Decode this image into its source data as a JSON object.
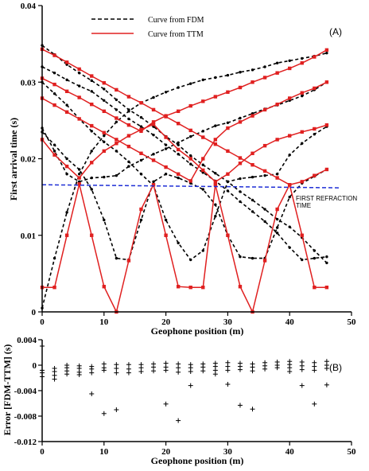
{
  "chart_data": [
    {
      "type": "line",
      "panel_label": "(A)",
      "xlabel": "Geophone position (m)",
      "ylabel": "First arrival time (s)",
      "xlim": [
        0,
        50
      ],
      "ylim": [
        0,
        0.04
      ],
      "xticks": [
        "0",
        "10",
        "20",
        "30",
        "40",
        "50"
      ],
      "yticks": [
        "0",
        "0.01",
        "0.02",
        "0.03",
        "0.04"
      ],
      "legend": {
        "placement": "top-center",
        "entries": [
          "Curve from FDM",
          "Curve from TTM"
        ]
      },
      "annotations": [
        "FIRST REFRACTION",
        "TIME"
      ],
      "refraction_line": {
        "x": [
          0,
          48
        ],
        "y": [
          0.0166,
          0.0162
        ],
        "color": "#1f2fd6"
      },
      "series": [
        {
          "name": "Curve from FDM",
          "style": "dashed",
          "color": "#000000",
          "lines": [
            {
              "x": [
                0,
                2,
                4,
                6,
                8,
                10,
                12,
                14,
                16,
                18,
                20,
                22,
                24,
                26,
                28,
                30,
                32,
                34,
                36,
                38,
                40,
                42,
                44,
                46
              ],
              "y": [
                0.0348,
                0.0336,
                0.0323,
                0.0312,
                0.0302,
                0.0291,
                0.0277,
                0.0264,
                0.0254,
                0.0242,
                0.0229,
                0.0218,
                0.0204,
                0.0192,
                0.0181,
                0.017,
                0.0157,
                0.0146,
                0.0134,
                0.0121,
                0.0111,
                0.0097,
                0.008,
                0.0064
              ]
            },
            {
              "x": [
                0,
                2,
                4,
                6,
                8,
                10,
                12,
                14,
                16,
                18,
                20,
                22,
                24,
                26,
                28,
                30,
                32,
                34,
                36,
                38,
                40,
                42,
                44,
                46
              ],
              "y": [
                0.0005,
                0.007,
                0.013,
                0.018,
                0.021,
                0.023,
                0.0248,
                0.0262,
                0.0273,
                0.028,
                0.0287,
                0.0293,
                0.0298,
                0.0303,
                0.0306,
                0.0309,
                0.0313,
                0.0316,
                0.032,
                0.0325,
                0.0328,
                0.0331,
                0.0334,
                0.0338
              ]
            },
            {
              "x": [
                0,
                2,
                4,
                6,
                8,
                10,
                12,
                14,
                16,
                18,
                20,
                22,
                24,
                26,
                28,
                30,
                32,
                34,
                36,
                38,
                40,
                42,
                44,
                46
              ],
              "y": [
                0.032,
                0.0312,
                0.0303,
                0.0295,
                0.0288,
                0.0276,
                0.0264,
                0.0252,
                0.0242,
                0.0231,
                0.0218,
                0.0206,
                0.0193,
                0.0182,
                0.0171,
                0.0158,
                0.0144,
                0.0131,
                0.0118,
                0.0103,
                0.0084,
                0.0068,
                0.007,
                0.0072
              ]
            },
            {
              "x": [
                0,
                2,
                4,
                6,
                8,
                10,
                12,
                14,
                16,
                18,
                20,
                22,
                24,
                26,
                28,
                30,
                32,
                34,
                36,
                38,
                40,
                42,
                44,
                46
              ],
              "y": [
                0.024,
                0.021,
                0.018,
                0.017,
                0.0175,
                0.0176,
                0.0178,
                0.019,
                0.0198,
                0.0206,
                0.0213,
                0.0221,
                0.0229,
                0.0236,
                0.0243,
                0.0247,
                0.0253,
                0.0259,
                0.0265,
                0.027,
                0.0276,
                0.0282,
                0.029,
                0.03
              ]
            },
            {
              "x": [
                0,
                2,
                4,
                6,
                8,
                10,
                12,
                14,
                16,
                18,
                20,
                22,
                24,
                26,
                28,
                30,
                32,
                34,
                36,
                38,
                40,
                42,
                44,
                46
              ],
              "y": [
                0.03,
                0.0285,
                0.027,
                0.0252,
                0.0236,
                0.0222,
                0.021,
                0.0196,
                0.018,
                0.0165,
                0.012,
                0.009,
                0.0068,
                0.008,
                0.0125,
                0.017,
                0.0174,
                0.0176,
                0.0178,
                0.018,
                0.0205,
                0.022,
                0.0232,
                0.0242
              ]
            },
            {
              "x": [
                0,
                2,
                4,
                6,
                8,
                10,
                12,
                14,
                16,
                18,
                20,
                22,
                24,
                26,
                28,
                30,
                32,
                34,
                36,
                38,
                40,
                42,
                44,
                46
              ],
              "y": [
                0.0235,
                0.0218,
                0.02,
                0.0186,
                0.016,
                0.012,
                0.007,
                0.0068,
                0.012,
                0.017,
                0.018,
                0.0175,
                0.0168,
                0.016,
                0.014,
                0.01,
                0.0072,
                0.007,
                0.007,
                0.011,
                0.015,
                0.0168,
                0.0177,
                0.0186
              ]
            }
          ]
        },
        {
          "name": "Curve from TTM",
          "style": "solid",
          "color": "#e02020",
          "marker": "square",
          "lines": [
            {
              "x": [
                0,
                2,
                4,
                6,
                8,
                10,
                12,
                14,
                16,
                18,
                20,
                22,
                24,
                26,
                28,
                30,
                32,
                34,
                36,
                38,
                40,
                42,
                44,
                46
              ],
              "y": [
                0.0343,
                0.0335,
                0.0326,
                0.0317,
                0.0308,
                0.0299,
                0.029,
                0.0281,
                0.0273,
                0.0264,
                0.0255,
                0.0246,
                0.0237,
                0.0228,
                0.0219,
                0.021,
                0.0201,
                0.0192,
                0.0184,
                0.0175,
                0.0166,
                0.017,
                0.0178,
                0.0186
              ]
            },
            {
              "x": [
                0,
                2,
                4,
                6,
                8,
                10,
                12,
                14,
                16,
                18,
                20,
                22,
                24,
                26,
                28,
                30,
                32,
                34,
                36,
                38,
                40,
                42,
                44,
                46
              ],
              "y": [
                0.0305,
                0.0297,
                0.0288,
                0.028,
                0.0271,
                0.0262,
                0.0253,
                0.0244,
                0.0236,
                0.0248,
                0.0256,
                0.0262,
                0.0269,
                0.0275,
                0.0281,
                0.0287,
                0.0293,
                0.03,
                0.0306,
                0.0312,
                0.0318,
                0.0325,
                0.0333,
                0.0342
              ]
            },
            {
              "x": [
                0,
                2,
                4,
                6,
                8,
                10,
                12,
                14,
                16,
                18,
                20,
                22,
                24,
                26,
                28,
                30,
                32,
                34,
                36,
                38,
                40,
                42,
                44,
                46
              ],
              "y": [
                0.0279,
                0.027,
                0.0261,
                0.0252,
                0.0243,
                0.0234,
                0.0225,
                0.0216,
                0.0207,
                0.0198,
                0.0189,
                0.018,
                0.0171,
                0.02,
                0.0225,
                0.024,
                0.0248,
                0.0256,
                0.0264,
                0.0271,
                0.0279,
                0.0286,
                0.0292,
                0.03
              ]
            },
            {
              "x": [
                0,
                2,
                4,
                6,
                8,
                10,
                12,
                14,
                16,
                18,
                20,
                22,
                24,
                26,
                28,
                30,
                32,
                34,
                36,
                38,
                40,
                42,
                44,
                46
              ],
              "y": [
                0.0225,
                0.0205,
                0.019,
                0.0175,
                0.0195,
                0.021,
                0.022,
                0.023,
                0.0238,
                0.0245,
                0.0228,
                0.0212,
                0.02,
                0.0185,
                0.017,
                0.018,
                0.0194,
                0.0207,
                0.0217,
                0.0225,
                0.023,
                0.0235,
                0.0239,
                0.0244
              ]
            },
            {
              "x": [
                0,
                2,
                4,
                6,
                8,
                10,
                12,
                14,
                16,
                18,
                20,
                22,
                24,
                26,
                28,
                30,
                32,
                34,
                36,
                38,
                40,
                42,
                44,
                46
              ],
              "y": [
                0.0032,
                0.0032,
                0.01,
                0.0167,
                0.01,
                0.0033,
                0.0,
                0.0067,
                0.0134,
                0.0166,
                0.01,
                0.0033,
                0.0032,
                0.0032,
                0.0166,
                0.01,
                0.0033,
                0.0,
                0.0067,
                0.0134,
                0.0166,
                0.01,
                0.0032,
                0.0032
              ]
            }
          ]
        }
      ]
    },
    {
      "type": "scatter",
      "panel_label": "(B)",
      "xlabel": "Geophone position (m)",
      "ylabel": "Error [FDM-TTM] (s)",
      "xlim": [
        0,
        50
      ],
      "ylim": [
        -0.012,
        0.004
      ],
      "xticks": [
        "0",
        "10",
        "20",
        "30",
        "40",
        "50"
      ],
      "yticks": [
        "0.004",
        "0",
        "-0.004",
        "-0.008",
        "-0.012"
      ],
      "marker": "plus",
      "points": {
        "x": [
          0,
          0,
          0,
          0,
          2,
          2,
          2,
          2,
          4,
          4,
          4,
          4,
          6,
          6,
          6,
          6,
          8,
          8,
          8,
          8,
          10,
          10,
          10,
          10,
          12,
          12,
          12,
          12,
          14,
          14,
          14,
          16,
          16,
          16,
          18,
          18,
          18,
          20,
          20,
          20,
          20,
          22,
          22,
          22,
          22,
          24,
          24,
          24,
          24,
          26,
          26,
          26,
          28,
          28,
          28,
          28,
          30,
          30,
          30,
          30,
          32,
          32,
          32,
          32,
          34,
          34,
          34,
          34,
          36,
          36,
          36,
          38,
          38,
          38,
          40,
          40,
          40,
          40,
          42,
          42,
          42,
          42,
          44,
          44,
          44,
          44,
          46,
          46,
          46,
          46
        ],
        "y": [
          0.003,
          -0.0008,
          -0.0012,
          -0.0018,
          -0.0005,
          -0.001,
          -0.0016,
          -0.0022,
          0.0,
          -0.0004,
          -0.0009,
          -0.0014,
          -0.0001,
          -0.0005,
          -0.0011,
          -0.0015,
          -0.0002,
          -0.0006,
          -0.0012,
          -0.0045,
          0.0002,
          -0.0004,
          -0.0008,
          -0.0076,
          0.0001,
          -0.0005,
          -0.0012,
          -0.007,
          0.0001,
          -0.0006,
          -0.0012,
          0.0001,
          -0.0004,
          -0.001,
          0.0002,
          -0.0003,
          -0.0009,
          0.0003,
          -0.0003,
          -0.0008,
          -0.0061,
          0.0002,
          -0.0004,
          -0.0011,
          -0.0087,
          0.0001,
          -0.0004,
          -0.001,
          -0.0032,
          0.0002,
          -0.0003,
          -0.0009,
          0.0003,
          -0.0002,
          -0.0008,
          -0.0014,
          0.0004,
          -0.0002,
          -0.0008,
          -0.003,
          0.0003,
          -0.0002,
          -0.0007,
          -0.0063,
          0.0002,
          -0.0003,
          -0.0009,
          -0.0069,
          0.0004,
          -0.0001,
          -0.0006,
          0.0005,
          0.0,
          -0.0004,
          0.0006,
          0.0001,
          -0.0004,
          -0.001,
          0.0005,
          -0.0001,
          -0.0007,
          -0.0032,
          0.0004,
          -0.0002,
          -0.0008,
          -0.0061,
          0.0006,
          0.0,
          -0.0005,
          -0.0031
        ]
      }
    }
  ]
}
